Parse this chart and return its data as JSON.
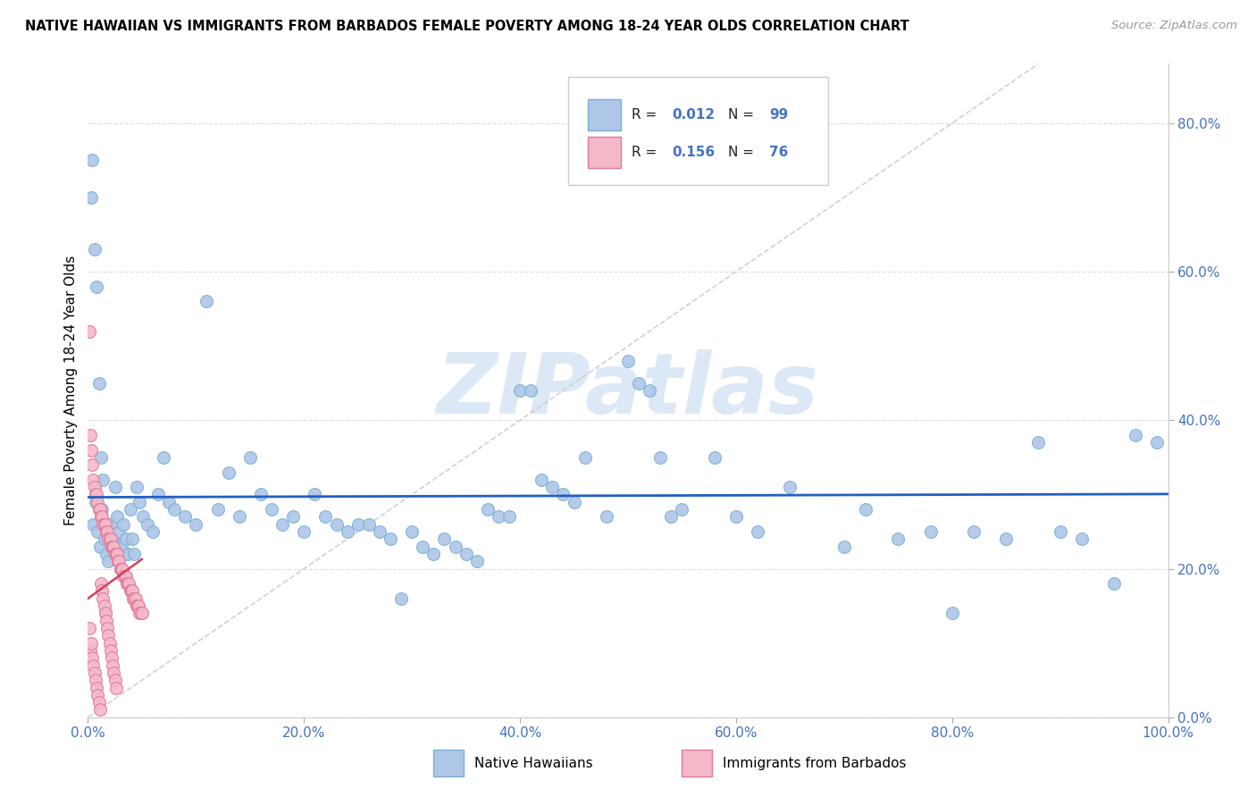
{
  "title": "NATIVE HAWAIIAN VS IMMIGRANTS FROM BARBADOS FEMALE POVERTY AMONG 18-24 YEAR OLDS CORRELATION CHART",
  "source": "Source: ZipAtlas.com",
  "ylabel": "Female Poverty Among 18-24 Year Olds",
  "xlim": [
    0.0,
    1.0
  ],
  "ylim": [
    0.0,
    0.88
  ],
  "xticks": [
    0.0,
    0.2,
    0.4,
    0.6,
    0.8,
    1.0
  ],
  "yticks": [
    0.0,
    0.2,
    0.4,
    0.6,
    0.8
  ],
  "xtick_labels": [
    "0.0%",
    "20.0%",
    "40.0%",
    "60.0%",
    "80.0%",
    "100.0%"
  ],
  "ytick_labels": [
    "0.0%",
    "20.0%",
    "40.0%",
    "60.0%",
    "80.0%"
  ],
  "series1_color": "#aec6e8",
  "series1_edge": "#7bafd4",
  "series2_color": "#f4b8c8",
  "series2_edge": "#e07898",
  "regression1_color": "#2060c0",
  "regression2_color": "#d04060",
  "diagonal_color": "#cccccc",
  "tick_color": "#4472c4",
  "legend_label1": "Native Hawaiians",
  "legend_label2": "Immigrants from Barbados",
  "marker_size": 100,
  "native_x": [
    0.005,
    0.007,
    0.009,
    0.011,
    0.013,
    0.015,
    0.017,
    0.019,
    0.021,
    0.023,
    0.025,
    0.027,
    0.029,
    0.031,
    0.033,
    0.035,
    0.037,
    0.039,
    0.041,
    0.043,
    0.045,
    0.048,
    0.051,
    0.055,
    0.06,
    0.065,
    0.07,
    0.075,
    0.08,
    0.09,
    0.1,
    0.11,
    0.12,
    0.13,
    0.14,
    0.15,
    0.16,
    0.17,
    0.18,
    0.19,
    0.2,
    0.21,
    0.22,
    0.23,
    0.24,
    0.25,
    0.26,
    0.27,
    0.28,
    0.29,
    0.3,
    0.31,
    0.32,
    0.33,
    0.34,
    0.35,
    0.36,
    0.37,
    0.38,
    0.39,
    0.4,
    0.41,
    0.42,
    0.43,
    0.44,
    0.45,
    0.46,
    0.48,
    0.5,
    0.51,
    0.52,
    0.53,
    0.54,
    0.55,
    0.58,
    0.6,
    0.62,
    0.65,
    0.7,
    0.72,
    0.75,
    0.78,
    0.8,
    0.82,
    0.85,
    0.88,
    0.9,
    0.92,
    0.95,
    0.97,
    0.99,
    0.003,
    0.004,
    0.006,
    0.008,
    0.01,
    0.012,
    0.014,
    0.016
  ],
  "native_y": [
    0.26,
    0.29,
    0.25,
    0.23,
    0.28,
    0.24,
    0.22,
    0.21,
    0.26,
    0.24,
    0.31,
    0.27,
    0.25,
    0.23,
    0.26,
    0.24,
    0.22,
    0.28,
    0.24,
    0.22,
    0.31,
    0.29,
    0.27,
    0.26,
    0.25,
    0.3,
    0.35,
    0.29,
    0.28,
    0.27,
    0.26,
    0.56,
    0.28,
    0.33,
    0.27,
    0.35,
    0.3,
    0.28,
    0.26,
    0.27,
    0.25,
    0.3,
    0.27,
    0.26,
    0.25,
    0.26,
    0.26,
    0.25,
    0.24,
    0.16,
    0.25,
    0.23,
    0.22,
    0.24,
    0.23,
    0.22,
    0.21,
    0.28,
    0.27,
    0.27,
    0.44,
    0.44,
    0.32,
    0.31,
    0.3,
    0.29,
    0.35,
    0.27,
    0.48,
    0.45,
    0.44,
    0.35,
    0.27,
    0.28,
    0.35,
    0.27,
    0.25,
    0.31,
    0.23,
    0.28,
    0.24,
    0.25,
    0.14,
    0.25,
    0.24,
    0.37,
    0.25,
    0.24,
    0.18,
    0.38,
    0.37,
    0.7,
    0.75,
    0.63,
    0.58,
    0.45,
    0.35,
    0.32,
    0.14
  ],
  "barbados_x": [
    0.001,
    0.001,
    0.002,
    0.002,
    0.003,
    0.003,
    0.004,
    0.004,
    0.005,
    0.005,
    0.006,
    0.006,
    0.007,
    0.007,
    0.008,
    0.008,
    0.009,
    0.009,
    0.01,
    0.01,
    0.011,
    0.011,
    0.012,
    0.012,
    0.013,
    0.013,
    0.014,
    0.014,
    0.015,
    0.015,
    0.016,
    0.016,
    0.017,
    0.017,
    0.018,
    0.018,
    0.019,
    0.019,
    0.02,
    0.02,
    0.021,
    0.021,
    0.022,
    0.022,
    0.023,
    0.023,
    0.024,
    0.024,
    0.025,
    0.025,
    0.026,
    0.026,
    0.027,
    0.028,
    0.029,
    0.03,
    0.031,
    0.032,
    0.033,
    0.034,
    0.035,
    0.036,
    0.037,
    0.038,
    0.039,
    0.04,
    0.041,
    0.042,
    0.043,
    0.044,
    0.045,
    0.046,
    0.047,
    0.048,
    0.049,
    0.05
  ],
  "barbados_y": [
    0.52,
    0.12,
    0.38,
    0.09,
    0.36,
    0.1,
    0.34,
    0.08,
    0.32,
    0.07,
    0.31,
    0.06,
    0.3,
    0.05,
    0.3,
    0.04,
    0.29,
    0.03,
    0.28,
    0.02,
    0.28,
    0.01,
    0.27,
    0.18,
    0.27,
    0.17,
    0.26,
    0.16,
    0.26,
    0.15,
    0.26,
    0.14,
    0.25,
    0.13,
    0.25,
    0.12,
    0.24,
    0.11,
    0.24,
    0.1,
    0.24,
    0.09,
    0.23,
    0.08,
    0.23,
    0.07,
    0.23,
    0.06,
    0.22,
    0.05,
    0.22,
    0.04,
    0.22,
    0.21,
    0.21,
    0.2,
    0.2,
    0.2,
    0.19,
    0.19,
    0.19,
    0.18,
    0.18,
    0.18,
    0.17,
    0.17,
    0.17,
    0.16,
    0.16,
    0.16,
    0.15,
    0.15,
    0.15,
    0.14,
    0.14,
    0.14
  ]
}
